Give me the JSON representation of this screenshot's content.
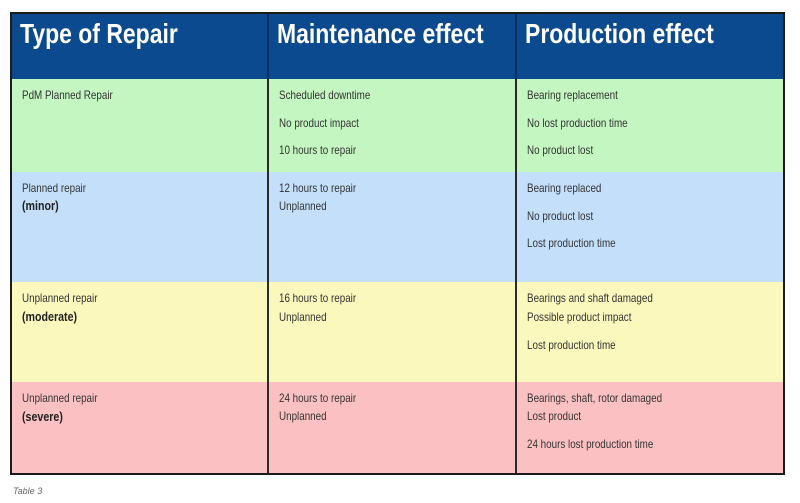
{
  "headers": [
    "Type of Repair",
    "Maintenance effect",
    "Production effect"
  ],
  "rows": [
    {
      "type": [
        "PdM Planned Repair"
      ],
      "maintenance": [
        "Scheduled downtime",
        "No product impact",
        "10 hours to repair"
      ],
      "production": [
        "Bearing replacement",
        "No lost production time",
        "No product lost"
      ]
    },
    {
      "type": [
        "Planned repair",
        "(minor)"
      ],
      "maintenance": [
        "12 hours to repair",
        "Unplanned"
      ],
      "production": [
        "Bearing replaced",
        "No product lost",
        "Lost production time"
      ]
    },
    {
      "type": [
        "Unplanned repair",
        "(moderate)"
      ],
      "maintenance": [
        "16 hours to repair",
        "Unplanned"
      ],
      "production": [
        "Bearings and shaft damaged",
        "Possible product impact",
        "Lost production time"
      ]
    },
    {
      "type": [
        "Unplanned repair",
        "(severe)"
      ],
      "maintenance": [
        "24 hours to repair",
        "Unplanned"
      ],
      "production": [
        "Bearings, shaft, rotor damaged",
        "Lost product",
        "24 hours lost production time"
      ]
    }
  ],
  "caption": "Table 3",
  "colors": {
    "header": "#0b4a8e",
    "green": "#c3f6c0",
    "blue": "#c3dffa",
    "yellow": "#fbf8be",
    "pink": "#fbc1c2"
  }
}
